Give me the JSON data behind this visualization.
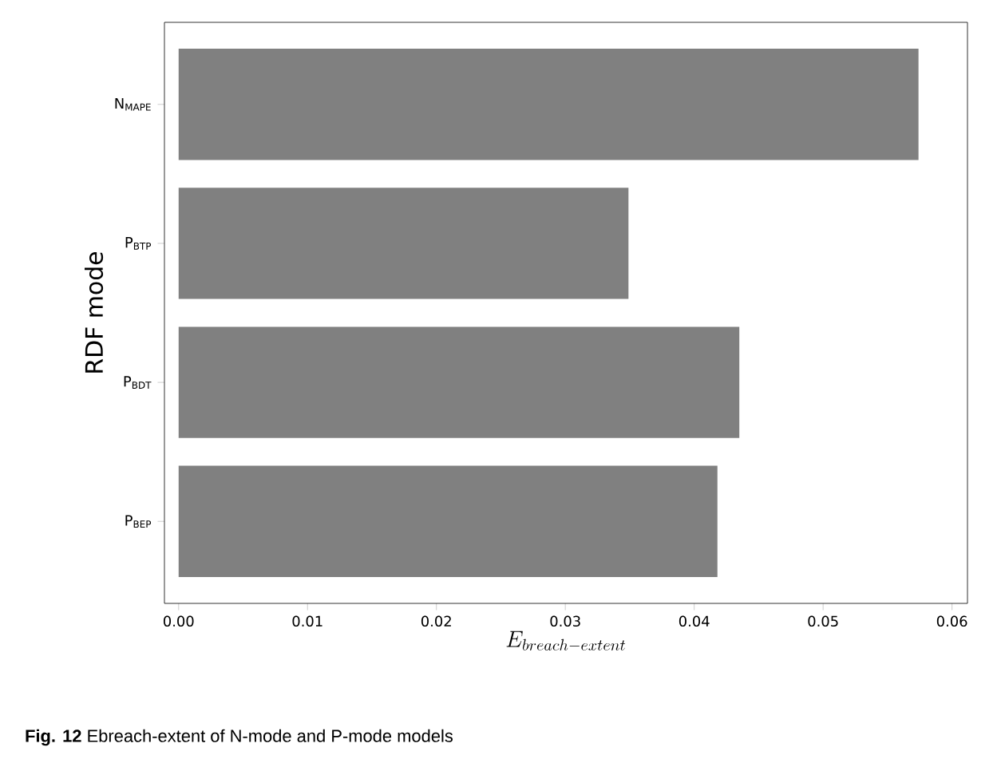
{
  "chart_data": {
    "type": "bar",
    "orientation": "horizontal",
    "categories": [
      "N$_{MAPE}$",
      "P$_{BTP}$",
      "P$_{BDT}$",
      "P$_{BEP}$"
    ],
    "values": [
      0.0574,
      0.0349,
      0.0435,
      0.0418
    ],
    "color": "#808080",
    "xlabel": "E_{breach-extent}",
    "ylabel": "RDF mode",
    "xlim": [
      -0.0011,
      0.0612
    ],
    "xticks": [
      {
        "value": 0,
        "label": "0.00"
      },
      {
        "value": 0.01,
        "label": "0.01"
      },
      {
        "value": 0.02,
        "label": "0.02"
      },
      {
        "value": 0.03,
        "label": "0.03"
      },
      {
        "value": 0.04,
        "label": "0.04"
      },
      {
        "value": 0.05,
        "label": "0.05"
      },
      {
        "value": 0.06,
        "label": "0.06"
      }
    ],
    "annotations": [
      "**Fig. 12** Ebreach-extent of N-mode and P-mode models"
    ]
  }
}
